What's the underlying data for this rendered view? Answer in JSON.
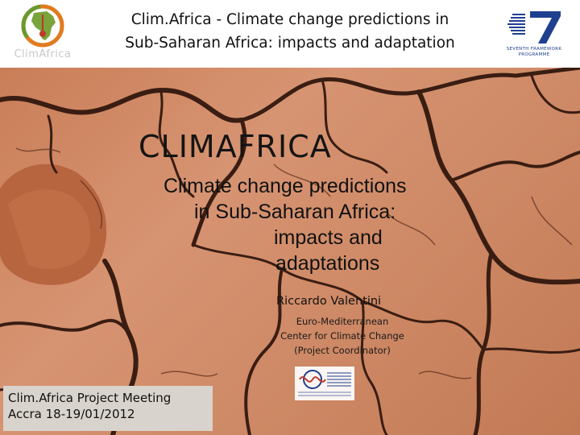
{
  "header": {
    "title_line1": "Clim.Africa - Climate change predictions in",
    "title_line2": "Sub-Saharan Africa: impacts and adaptation",
    "left_logo_text": "ClimAfrica",
    "right_logo_caption_line1": "SEVENTH FRAMEWORK",
    "right_logo_caption_line2": "PROGRAMME"
  },
  "slide": {
    "title": "CLIMAFRICA",
    "subtitle_lines": [
      "Climate change predictions",
      "in Sub-Saharan Africa:",
      "impacts and",
      "adaptations"
    ],
    "presenter_name": "Riccardo Valentini",
    "affiliation_lines": [
      "Euro-Mediterranean",
      "Center for Climate Change",
      "(Project Coordinator)"
    ],
    "meeting_line1": "Clim.Africa Project Meeting",
    "meeting_line2": "Accra 18-19/01/2012"
  },
  "colors": {
    "earth": "#cf8a67",
    "crack": "#3a1d12",
    "brand_blue": "#1f3f8f",
    "logo_green": "#6a9a2e",
    "logo_orange": "#e07b1f",
    "logo_red": "#c0392b"
  }
}
